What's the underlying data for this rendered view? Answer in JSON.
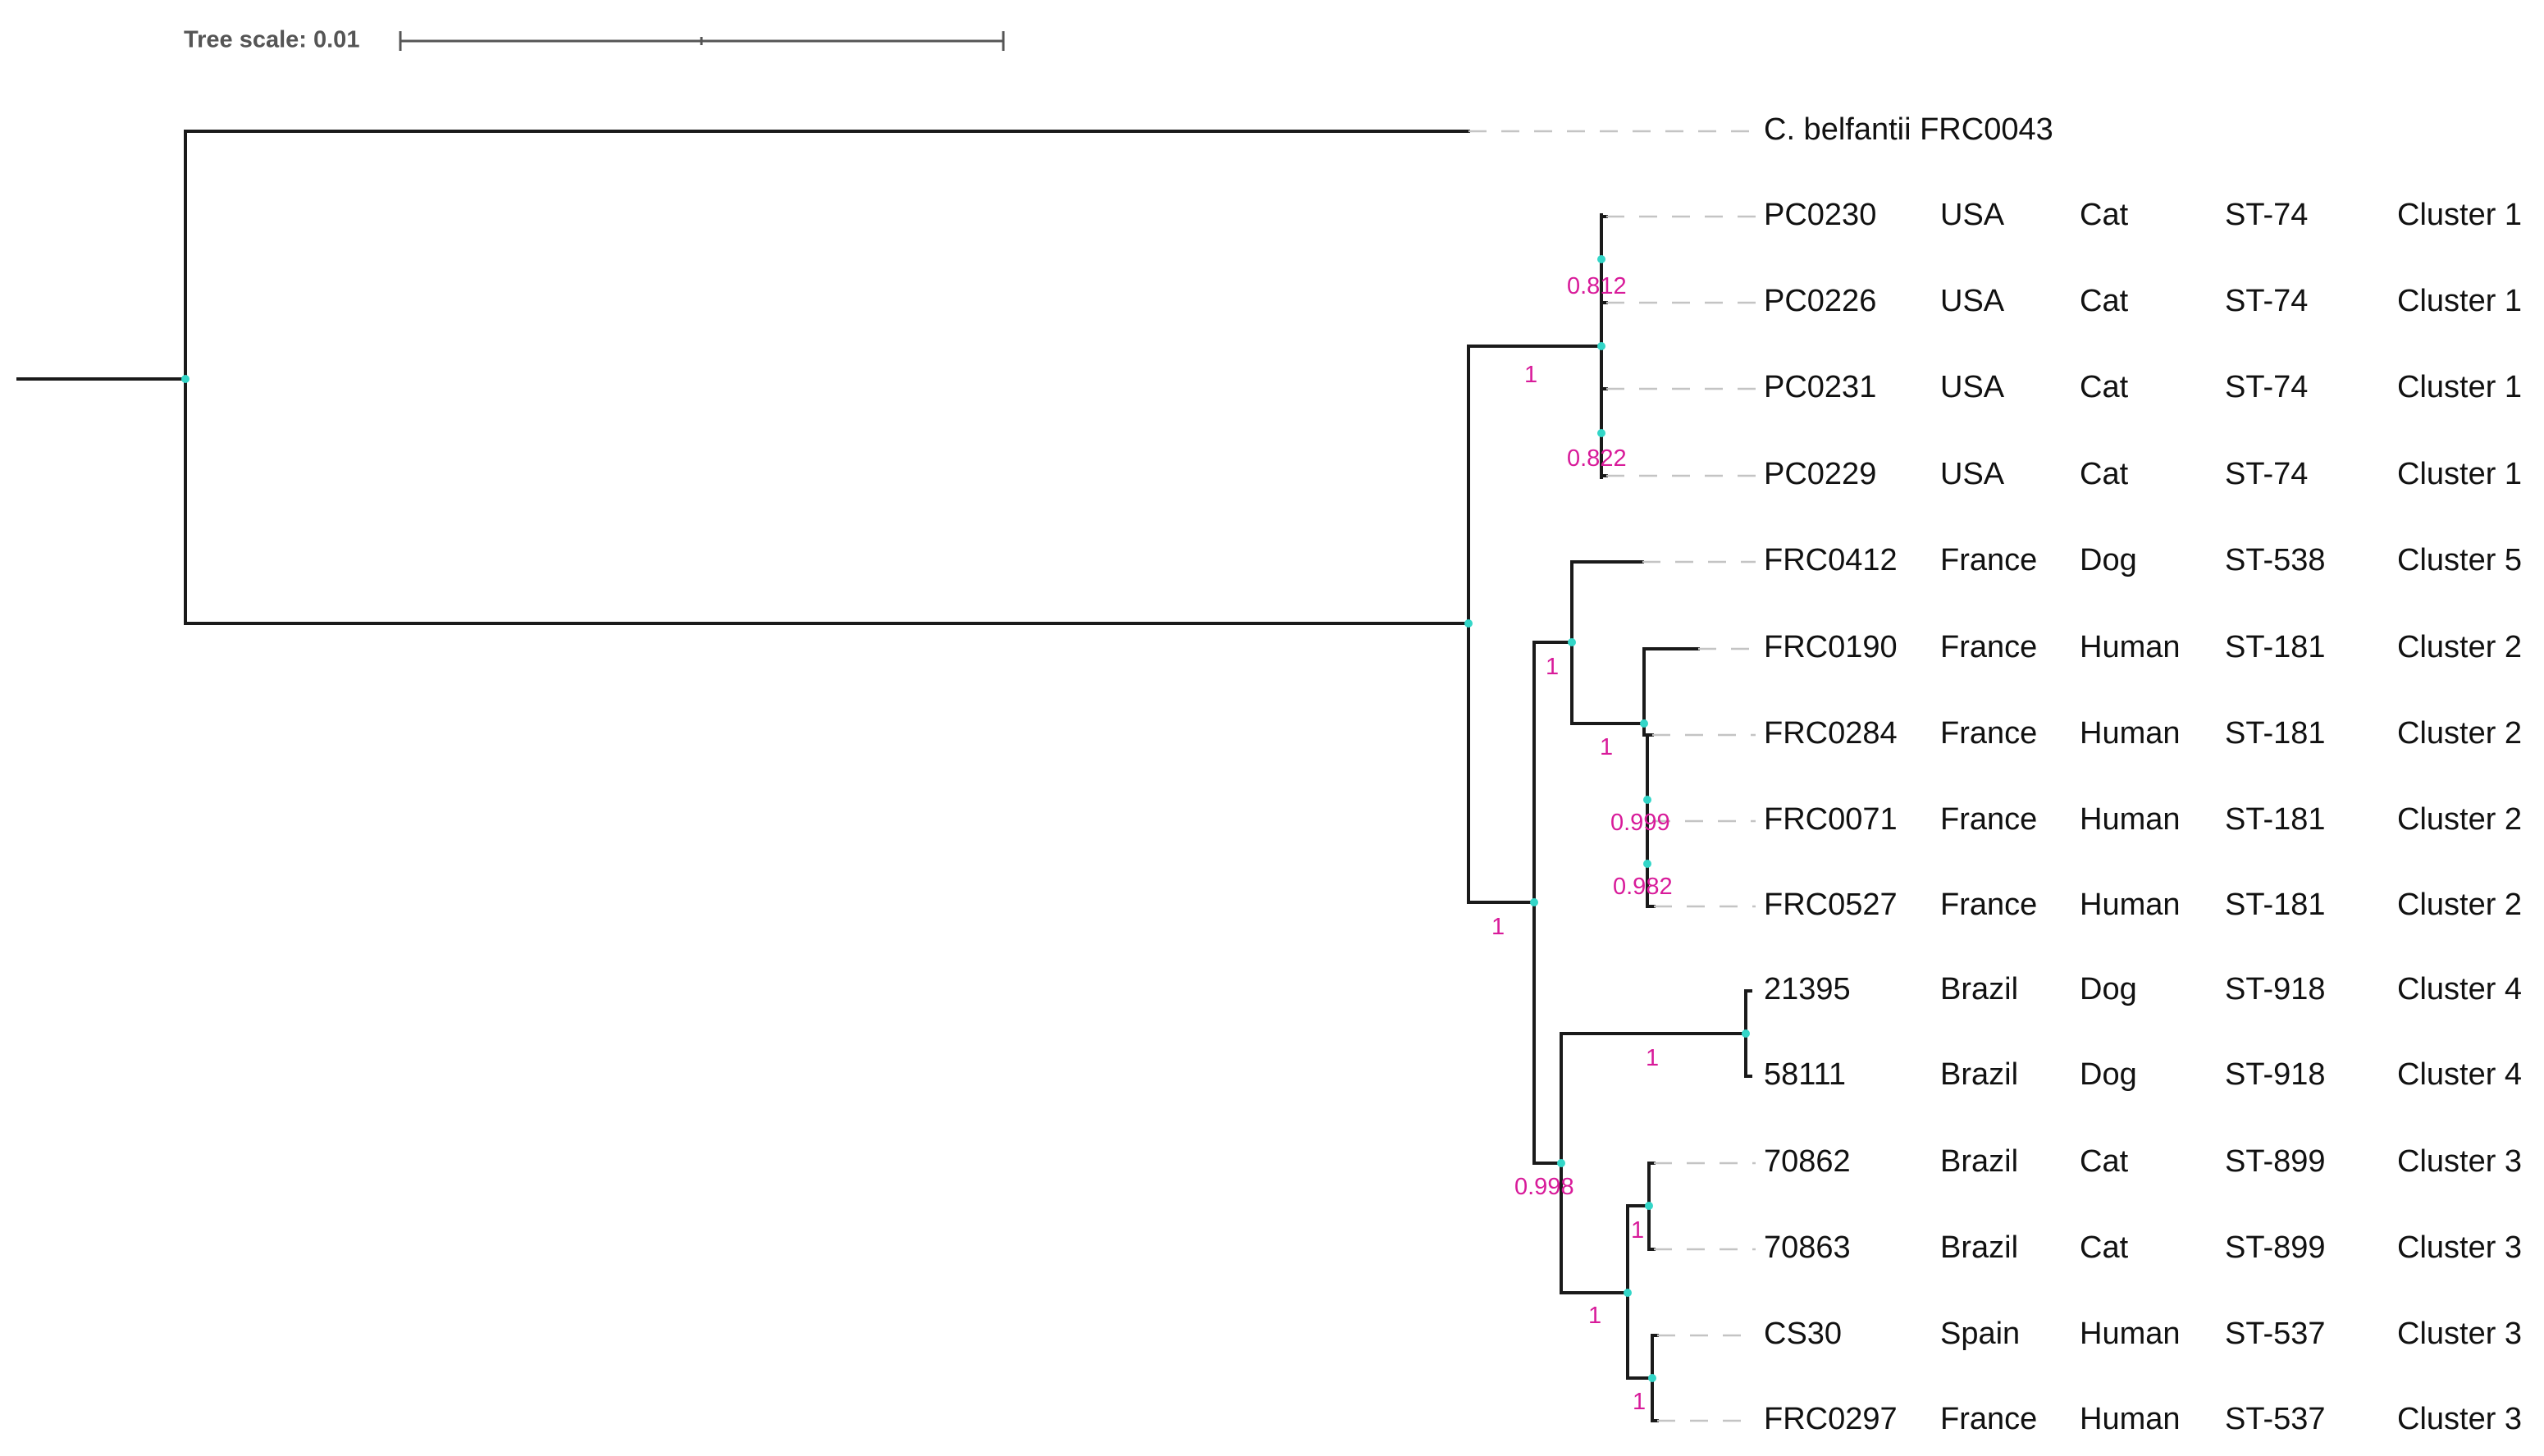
{
  "tree_scale": {
    "label": "Tree scale: 0.01",
    "value": 0.01
  },
  "outgroup": {
    "label": "C. belfantii FRC0043"
  },
  "leaves": [
    {
      "id": "PC0230",
      "country": "USA",
      "host": "Cat",
      "st": "ST-74",
      "cluster": "Cluster 1"
    },
    {
      "id": "PC0226",
      "country": "USA",
      "host": "Cat",
      "st": "ST-74",
      "cluster": "Cluster 1"
    },
    {
      "id": "PC0231",
      "country": "USA",
      "host": "Cat",
      "st": "ST-74",
      "cluster": "Cluster 1"
    },
    {
      "id": "PC0229",
      "country": "USA",
      "host": "Cat",
      "st": "ST-74",
      "cluster": "Cluster 1"
    },
    {
      "id": "FRC0412",
      "country": "France",
      "host": "Dog",
      "st": "ST-538",
      "cluster": "Cluster 5"
    },
    {
      "id": "FRC0190",
      "country": "France",
      "host": "Human",
      "st": "ST-181",
      "cluster": "Cluster 2"
    },
    {
      "id": "FRC0284",
      "country": "France",
      "host": "Human",
      "st": "ST-181",
      "cluster": "Cluster 2"
    },
    {
      "id": "FRC0071",
      "country": "France",
      "host": "Human",
      "st": "ST-181",
      "cluster": "Cluster 2"
    },
    {
      "id": "FRC0527",
      "country": "France",
      "host": "Human",
      "st": "ST-181",
      "cluster": "Cluster 2"
    },
    {
      "id": "21395",
      "country": "Brazil",
      "host": "Dog",
      "st": "ST-918",
      "cluster": "Cluster 4"
    },
    {
      "id": "58111",
      "country": "Brazil",
      "host": "Dog",
      "st": "ST-918",
      "cluster": "Cluster 4"
    },
    {
      "id": "70862",
      "country": "Brazil",
      "host": "Cat",
      "st": "ST-899",
      "cluster": "Cluster 3"
    },
    {
      "id": "70863",
      "country": "Brazil",
      "host": "Cat",
      "st": "ST-899",
      "cluster": "Cluster 3"
    },
    {
      "id": "CS30",
      "country": "Spain",
      "host": "Human",
      "st": "ST-537",
      "cluster": "Cluster 3"
    },
    {
      "id": "FRC0297",
      "country": "France",
      "host": "Human",
      "st": "ST-537",
      "cluster": "Cluster 3"
    }
  ],
  "support_values": [
    {
      "clade": "PC0230-PC0226",
      "value": "0.812"
    },
    {
      "clade": "Cluster-1",
      "value": "1"
    },
    {
      "clade": "PC0231-PC0229",
      "value": "0.822"
    },
    {
      "clade": "Cluster-5-2",
      "value": "1"
    },
    {
      "clade": "Cluster-2",
      "value": "1"
    },
    {
      "clade": "FRC0284-FRC0071-FRC0527",
      "value": "0.999"
    },
    {
      "clade": "FRC0071-FRC0527",
      "value": "0.982"
    },
    {
      "clade": "Ingroup-non-cluster-1",
      "value": "1"
    },
    {
      "clade": "Cluster-4",
      "value": "1"
    },
    {
      "clade": "Cluster-4-3",
      "value": "0.998"
    },
    {
      "clade": "70862-70863",
      "value": "1"
    },
    {
      "clade": "Cluster-3",
      "value": "1"
    },
    {
      "clade": "CS30-FRC0297",
      "value": "1"
    }
  ],
  "colors": {
    "branch": "#1a1a1a",
    "support": "#d81b9a",
    "node": "#33d6c8",
    "guide": "#c4c4c4"
  }
}
